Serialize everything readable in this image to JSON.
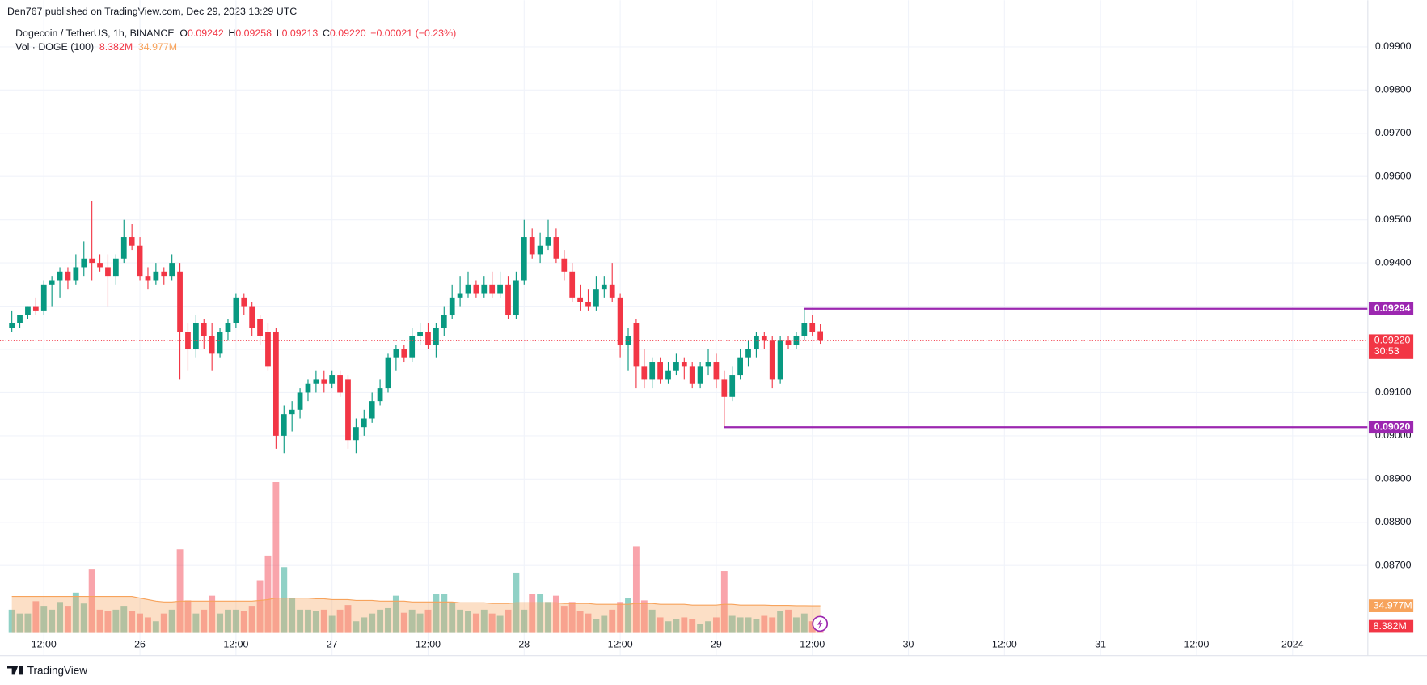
{
  "header": {
    "published": "Den767 published on TradingView.com, Dec 29, 2023 13:29 UTC"
  },
  "footer": {
    "brand": "TradingView"
  },
  "chart_data": {
    "type": "candlestick",
    "symbol": "Dogecoin / TetherUS, 1h, BINANCE",
    "legend_items": [
      {
        "key": "O",
        "value": "0.09242"
      },
      {
        "key": "H",
        "value": "0.09258"
      },
      {
        "key": "L",
        "value": "0.09213"
      },
      {
        "key": "C",
        "value": "0.09220"
      }
    ],
    "change": "−0.00021 (−0.23%)",
    "up_color": "#089981",
    "down_color": "#f23645",
    "grid": true,
    "xlim": [
      -0.57,
      169.4
    ],
    "xticks": [
      {
        "value": 4,
        "label": "12:00"
      },
      {
        "value": 16,
        "label": "26"
      },
      {
        "value": 28,
        "label": "12:00"
      },
      {
        "value": 40,
        "label": "27"
      },
      {
        "value": 52,
        "label": "12:00"
      },
      {
        "value": 64,
        "label": "28"
      },
      {
        "value": 76,
        "label": "12:00"
      },
      {
        "value": 88,
        "label": "29"
      },
      {
        "value": 100,
        "label": "12:00"
      },
      {
        "value": 112,
        "label": "30"
      },
      {
        "value": 124,
        "label": "12:00"
      },
      {
        "value": 136,
        "label": "31"
      },
      {
        "value": 148,
        "label": "12:00"
      },
      {
        "value": 160,
        "label": "2024"
      }
    ],
    "ylim": [
      0.08544,
      0.09991
    ],
    "yticks": [
      {
        "value": 0.099,
        "label": "0.09900"
      },
      {
        "value": 0.098,
        "label": "0.09800"
      },
      {
        "value": 0.097,
        "label": "0.09700"
      },
      {
        "value": 0.096,
        "label": "0.09600"
      },
      {
        "value": 0.095,
        "label": "0.09500"
      },
      {
        "value": 0.094,
        "label": "0.09400"
      },
      {
        "value": 0.093,
        "label": "0.09300"
      },
      {
        "value": 0.092,
        "label": "0.09200"
      },
      {
        "value": 0.091,
        "label": "0.09100"
      },
      {
        "value": 0.09,
        "label": "0.09000"
      },
      {
        "value": 0.089,
        "label": "0.08900"
      },
      {
        "value": 0.088,
        "label": "0.08800"
      },
      {
        "value": 0.087,
        "label": "0.08700"
      }
    ],
    "x": [
      0,
      1,
      2,
      3,
      4,
      5,
      6,
      7,
      8,
      9,
      10,
      11,
      12,
      13,
      14,
      15,
      16,
      17,
      18,
      19,
      20,
      21,
      22,
      23,
      24,
      25,
      26,
      27,
      28,
      29,
      30,
      31,
      32,
      33,
      34,
      35,
      36,
      37,
      38,
      39,
      40,
      41,
      42,
      43,
      44,
      45,
      46,
      47,
      48,
      49,
      50,
      51,
      52,
      53,
      54,
      55,
      56,
      57,
      58,
      59,
      60,
      61,
      62,
      63,
      64,
      65,
      66,
      67,
      68,
      69,
      70,
      71,
      72,
      73,
      74,
      75,
      76,
      77,
      78,
      79,
      80,
      81,
      82,
      83,
      84,
      85,
      86,
      87,
      88,
      89,
      90,
      91,
      92,
      93,
      94,
      95,
      96,
      97,
      98,
      99,
      100,
      101
    ],
    "ohlc": [
      [
        0.0925,
        0.0929,
        0.0924,
        0.0926
      ],
      [
        0.0926,
        0.0928,
        0.0925,
        0.0928
      ],
      [
        0.0928,
        0.093,
        0.0927,
        0.093
      ],
      [
        0.093,
        0.0932,
        0.0928,
        0.0929
      ],
      [
        0.0929,
        0.0936,
        0.0928,
        0.0935
      ],
      [
        0.0935,
        0.0937,
        0.093,
        0.0936
      ],
      [
        0.0936,
        0.0939,
        0.0932,
        0.0938
      ],
      [
        0.0938,
        0.0939,
        0.0934,
        0.0936
      ],
      [
        0.0936,
        0.0942,
        0.0935,
        0.0939
      ],
      [
        0.0939,
        0.0945,
        0.0937,
        0.0941
      ],
      [
        0.0941,
        0.09544,
        0.0936,
        0.094
      ],
      [
        0.094,
        0.0942,
        0.0938,
        0.0939
      ],
      [
        0.0939,
        0.0942,
        0.093,
        0.0937
      ],
      [
        0.0937,
        0.0942,
        0.0935,
        0.0941
      ],
      [
        0.0941,
        0.095,
        0.094,
        0.0946
      ],
      [
        0.0946,
        0.0949,
        0.0943,
        0.0944
      ],
      [
        0.0944,
        0.0946,
        0.0936,
        0.0937
      ],
      [
        0.0937,
        0.0939,
        0.0934,
        0.0936
      ],
      [
        0.0936,
        0.094,
        0.0935,
        0.0938
      ],
      [
        0.0938,
        0.0939,
        0.0935,
        0.0937
      ],
      [
        0.0937,
        0.0942,
        0.0936,
        0.094
      ],
      [
        0.0938,
        0.094,
        0.0913,
        0.0924
      ],
      [
        0.0924,
        0.0926,
        0.0915,
        0.092
      ],
      [
        0.092,
        0.0928,
        0.0918,
        0.0926
      ],
      [
        0.0926,
        0.0927,
        0.092,
        0.0923
      ],
      [
        0.0923,
        0.0926,
        0.0915,
        0.0919
      ],
      [
        0.0919,
        0.0925,
        0.0918,
        0.0924
      ],
      [
        0.0924,
        0.0927,
        0.0922,
        0.0926
      ],
      [
        0.0926,
        0.0933,
        0.0925,
        0.0932
      ],
      [
        0.0932,
        0.0933,
        0.0928,
        0.093
      ],
      [
        0.093,
        0.0931,
        0.0923,
        0.0925
      ],
      [
        0.0927,
        0.0928,
        0.0921,
        0.0923
      ],
      [
        0.0924,
        0.0926,
        0.0915,
        0.0916
      ],
      [
        0.0924,
        0.0925,
        0.0897,
        0.09
      ],
      [
        0.09,
        0.0907,
        0.0896,
        0.0905
      ],
      [
        0.0905,
        0.0908,
        0.0901,
        0.0906
      ],
      [
        0.0906,
        0.0911,
        0.0904,
        0.091
      ],
      [
        0.091,
        0.0913,
        0.0908,
        0.0912
      ],
      [
        0.0912,
        0.0915,
        0.091,
        0.0913
      ],
      [
        0.0913,
        0.0915,
        0.091,
        0.0912
      ],
      [
        0.0912,
        0.0915,
        0.0911,
        0.0914
      ],
      [
        0.0914,
        0.0915,
        0.0909,
        0.091
      ],
      [
        0.0913,
        0.0914,
        0.0897,
        0.0899
      ],
      [
        0.0899,
        0.0904,
        0.0896,
        0.0902
      ],
      [
        0.0902,
        0.0906,
        0.09,
        0.0904
      ],
      [
        0.0904,
        0.091,
        0.0903,
        0.0908
      ],
      [
        0.0908,
        0.0913,
        0.0907,
        0.0911
      ],
      [
        0.0911,
        0.0919,
        0.091,
        0.0918
      ],
      [
        0.0918,
        0.0921,
        0.0915,
        0.092
      ],
      [
        0.092,
        0.0921,
        0.0917,
        0.0918
      ],
      [
        0.0918,
        0.0925,
        0.0917,
        0.0923
      ],
      [
        0.0923,
        0.0926,
        0.0921,
        0.0924
      ],
      [
        0.0924,
        0.0926,
        0.092,
        0.0921
      ],
      [
        0.0921,
        0.0926,
        0.0918,
        0.0925
      ],
      [
        0.0925,
        0.093,
        0.0923,
        0.0928
      ],
      [
        0.0928,
        0.0935,
        0.0927,
        0.0932
      ],
      [
        0.0932,
        0.0937,
        0.093,
        0.0933
      ],
      [
        0.0933,
        0.0938,
        0.0932,
        0.0935
      ],
      [
        0.0935,
        0.0936,
        0.0932,
        0.0933
      ],
      [
        0.0933,
        0.0937,
        0.0932,
        0.0935
      ],
      [
        0.0935,
        0.0938,
        0.0932,
        0.0933
      ],
      [
        0.0933,
        0.0938,
        0.0932,
        0.0935
      ],
      [
        0.0935,
        0.0937,
        0.0927,
        0.0928
      ],
      [
        0.0928,
        0.0938,
        0.0927,
        0.0936
      ],
      [
        0.0936,
        0.095,
        0.0935,
        0.0946
      ],
      [
        0.0946,
        0.0948,
        0.0941,
        0.0942
      ],
      [
        0.0942,
        0.0947,
        0.094,
        0.0944
      ],
      [
        0.0944,
        0.095,
        0.0943,
        0.0946
      ],
      [
        0.0946,
        0.0948,
        0.094,
        0.0941
      ],
      [
        0.0941,
        0.0943,
        0.0936,
        0.0938
      ],
      [
        0.0938,
        0.094,
        0.0931,
        0.0932
      ],
      [
        0.0932,
        0.0935,
        0.0929,
        0.0931
      ],
      [
        0.0931,
        0.0934,
        0.0929,
        0.093
      ],
      [
        0.093,
        0.0937,
        0.0929,
        0.0934
      ],
      [
        0.0934,
        0.0937,
        0.0932,
        0.0935
      ],
      [
        0.0935,
        0.094,
        0.0931,
        0.0932
      ],
      [
        0.0932,
        0.0933,
        0.0918,
        0.0921
      ],
      [
        0.0921,
        0.0925,
        0.0915,
        0.0923
      ],
      [
        0.0926,
        0.0927,
        0.0911,
        0.0916
      ],
      [
        0.0916,
        0.092,
        0.0911,
        0.0913
      ],
      [
        0.0913,
        0.0918,
        0.0911,
        0.0917
      ],
      [
        0.0917,
        0.0918,
        0.0912,
        0.0913
      ],
      [
        0.0913,
        0.0917,
        0.0912,
        0.0915
      ],
      [
        0.0915,
        0.0919,
        0.0914,
        0.0917
      ],
      [
        0.0917,
        0.0918,
        0.0913,
        0.0916
      ],
      [
        0.0916,
        0.0917,
        0.0911,
        0.0912
      ],
      [
        0.0912,
        0.0917,
        0.0911,
        0.0916
      ],
      [
        0.0916,
        0.092,
        0.0914,
        0.0917
      ],
      [
        0.0917,
        0.0919,
        0.0911,
        0.0913
      ],
      [
        0.0913,
        0.0915,
        0.0902,
        0.0909
      ],
      [
        0.0909,
        0.0916,
        0.0908,
        0.0914
      ],
      [
        0.0914,
        0.092,
        0.0913,
        0.0918
      ],
      [
        0.0918,
        0.0922,
        0.0916,
        0.092
      ],
      [
        0.092,
        0.0924,
        0.0918,
        0.0923
      ],
      [
        0.0923,
        0.0924,
        0.092,
        0.0922
      ],
      [
        0.0922,
        0.0923,
        0.0911,
        0.0913
      ],
      [
        0.0913,
        0.0923,
        0.0912,
        0.0922
      ],
      [
        0.0922,
        0.0923,
        0.092,
        0.0921
      ],
      [
        0.0921,
        0.0924,
        0.092,
        0.0923
      ],
      [
        0.0923,
        0.09294,
        0.0922,
        0.0926
      ],
      [
        0.0926,
        0.0928,
        0.0923,
        0.0924
      ],
      [
        0.09242,
        0.09258,
        0.09213,
        0.0922
      ]
    ],
    "volume": {
      "title": "Vol · DOGE (100)",
      "y2lim": [
        0,
        200
      ],
      "values": [
        30,
        25,
        25,
        41,
        35,
        30,
        40,
        35,
        52,
        38,
        82,
        30,
        28,
        30,
        35,
        28,
        25,
        20,
        15,
        25,
        30,
        108,
        42,
        25,
        30,
        48,
        25,
        30,
        30,
        28,
        35,
        68,
        100,
        195,
        85,
        45,
        30,
        30,
        28,
        30,
        22,
        30,
        36,
        15,
        20,
        25,
        30,
        32,
        48,
        26,
        30,
        25,
        30,
        50,
        50,
        40,
        30,
        28,
        25,
        30,
        25,
        22,
        30,
        78,
        30,
        50,
        50,
        40,
        48,
        35,
        40,
        28,
        25,
        18,
        22,
        30,
        40,
        45,
        112,
        42,
        30,
        20,
        15,
        18,
        20,
        18,
        12,
        15,
        20,
        80,
        22,
        20,
        20,
        18,
        22,
        20,
        28,
        30,
        20,
        25,
        15,
        8.382
      ],
      "last_label": "8.382M",
      "ma_color": "#f7a35c",
      "ma_values": [
        47,
        47,
        47,
        47,
        47,
        47,
        47,
        47,
        47,
        47,
        47,
        47,
        47,
        47,
        47,
        47,
        45,
        43,
        41,
        40,
        40,
        41,
        41,
        41,
        41,
        41,
        41,
        41,
        41,
        41,
        41,
        42,
        43,
        45,
        45,
        45,
        45,
        45,
        44,
        44,
        43,
        43,
        43,
        42,
        42,
        42,
        41,
        41,
        41,
        41,
        40,
        40,
        40,
        40,
        40,
        40,
        39,
        39,
        39,
        39,
        38,
        38,
        38,
        39,
        39,
        39,
        39,
        39,
        39,
        38,
        38,
        38,
        38,
        37,
        37,
        37,
        37,
        37,
        38,
        38,
        38,
        37,
        37,
        37,
        37,
        36,
        36,
        36,
        36,
        37,
        37,
        36,
        36,
        36,
        36,
        35.5,
        35.5,
        35.5,
        35.2,
        35.1,
        35,
        34.977
      ],
      "ma_last_label": "34.977M"
    },
    "last_price": {
      "value": 0.0922,
      "label": "0.09220",
      "countdown": "30:53"
    },
    "level_color": "#9c27b0",
    "levels": [
      {
        "value": 0.09294,
        "label": "0.09294",
        "x": 99
      },
      {
        "value": 0.0902,
        "label": "0.09020",
        "x": 89
      }
    ]
  }
}
